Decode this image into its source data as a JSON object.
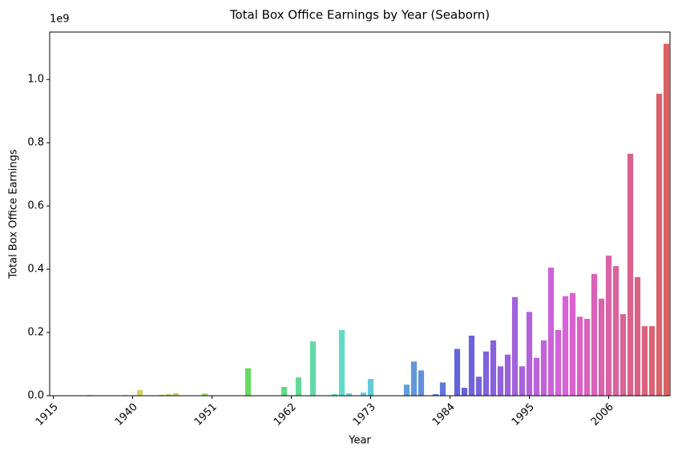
{
  "chart_data": {
    "type": "bar",
    "title": "Total Box Office Earnings by Year (Seaborn)",
    "x_label": "Year",
    "y_label": "Total Box Office Earnings",
    "y_offset_label": "1e9",
    "categories": [
      "1915",
      null,
      null,
      null,
      null,
      null,
      null,
      null,
      null,
      null,
      null,
      "1940",
      null,
      null,
      null,
      null,
      null,
      null,
      null,
      null,
      null,
      null,
      "1951",
      null,
      null,
      null,
      null,
      null,
      null,
      null,
      null,
      null,
      null,
      "1962",
      null,
      null,
      null,
      null,
      null,
      null,
      null,
      null,
      null,
      null,
      "1973",
      null,
      null,
      null,
      null,
      null,
      null,
      null,
      null,
      null,
      null,
      "1984",
      null,
      null,
      null,
      null,
      null,
      null,
      null,
      null,
      null,
      null,
      "1995",
      null,
      null,
      null,
      null,
      null,
      null,
      null,
      null,
      null,
      null,
      "2006",
      null,
      null,
      null,
      null,
      null,
      null,
      null,
      null
    ],
    "values": [
      0,
      0,
      0,
      0,
      0,
      0.002,
      0,
      0,
      0,
      0,
      0.002,
      0,
      0.018,
      0,
      0,
      0.003,
      0.005,
      0.008,
      0,
      0,
      0,
      0.007,
      0,
      0,
      0,
      0,
      0,
      0.087,
      0,
      0,
      0,
      0,
      0.028,
      0,
      0.058,
      0,
      0.172,
      0,
      0,
      0.005,
      0.208,
      0.008,
      0,
      0.01,
      0.053,
      0,
      0,
      0,
      0,
      0.035,
      0.108,
      0.08,
      0,
      0.005,
      0.042,
      0,
      0.148,
      0.025,
      0.19,
      0.06,
      0.14,
      0.175,
      0.093,
      0.13,
      0.312,
      0.093,
      0.265,
      0.12,
      0.175,
      0.405,
      0.208,
      0.315,
      0.325,
      0.25,
      0.243,
      0.385,
      0.307,
      0.443,
      0.41,
      0.258,
      0.765,
      0.375,
      0.22,
      0.22,
      0.955,
      1.113
    ],
    "palette": "husl",
    "ylim": [
      0,
      1.15
    ],
    "yticks": [
      {
        "value": 0,
        "label": "0.0"
      },
      0.2,
      0.4,
      0.6,
      0.8,
      {
        "value": 1,
        "label": "1.0"
      }
    ],
    "grid": false
  }
}
